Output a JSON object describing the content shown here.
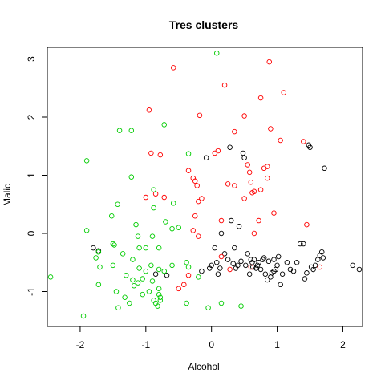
{
  "chart_data": {
    "type": "scatter",
    "title": "Tres clusters",
    "xlabel": "Alcohol",
    "ylabel": "Malic",
    "xlim": [
      -2.5,
      2.3
    ],
    "ylim": [
      -1.6,
      3.2
    ],
    "xticks": [
      "-2",
      "-1",
      "0",
      "1",
      "2"
    ],
    "yticks": [
      "-1",
      "0",
      "1",
      "2",
      "3"
    ],
    "grid": false,
    "legend": "none",
    "series": [
      {
        "color": "#000000",
        "points": [
          [
            -1.8,
            -0.25
          ],
          [
            -1.72,
            -0.3
          ],
          [
            -0.85,
            -0.7
          ],
          [
            -0.68,
            -0.72
          ],
          [
            -0.15,
            -0.65
          ],
          [
            -0.08,
            1.3
          ],
          [
            -0.03,
            -0.6
          ],
          [
            0.0,
            -0.55
          ],
          [
            0.05,
            -0.25
          ],
          [
            0.08,
            -0.5
          ],
          [
            0.1,
            -0.7
          ],
          [
            0.13,
            -0.6
          ],
          [
            0.15,
            0.0
          ],
          [
            0.2,
            -0.35
          ],
          [
            0.25,
            -0.45
          ],
          [
            0.28,
            1.48
          ],
          [
            0.3,
            0.22
          ],
          [
            0.35,
            -0.25
          ],
          [
            0.37,
            -0.6
          ],
          [
            0.4,
            -0.55
          ],
          [
            0.42,
            0.12
          ],
          [
            0.45,
            -0.48
          ],
          [
            0.48,
            1.38
          ],
          [
            0.5,
            1.3
          ],
          [
            0.52,
            -0.55
          ],
          [
            0.55,
            -0.35
          ],
          [
            0.6,
            -0.45
          ],
          [
            0.62,
            -0.5
          ],
          [
            0.63,
            -0.58
          ],
          [
            0.65,
            -0.45
          ],
          [
            0.68,
            -0.6
          ],
          [
            0.7,
            -0.55
          ],
          [
            0.72,
            -0.5
          ],
          [
            0.75,
            -0.62
          ],
          [
            0.78,
            -0.45
          ],
          [
            0.8,
            -0.42
          ],
          [
            0.82,
            -0.7
          ],
          [
            0.85,
            -0.8
          ],
          [
            0.87,
            -0.48
          ],
          [
            0.9,
            -0.75
          ],
          [
            0.92,
            -0.68
          ],
          [
            0.95,
            -0.45
          ],
          [
            0.98,
            -0.62
          ],
          [
            1.0,
            -0.55
          ],
          [
            1.02,
            -0.4
          ],
          [
            1.05,
            -0.88
          ],
          [
            1.08,
            -0.7
          ],
          [
            1.15,
            -0.5
          ],
          [
            1.2,
            -0.62
          ],
          [
            1.25,
            -0.65
          ],
          [
            1.3,
            -0.5
          ],
          [
            1.35,
            -0.18
          ],
          [
            1.4,
            -0.18
          ],
          [
            1.42,
            -0.78
          ],
          [
            1.45,
            -0.68
          ],
          [
            1.48,
            1.52
          ],
          [
            1.5,
            1.48
          ],
          [
            1.55,
            -0.62
          ],
          [
            1.58,
            -0.55
          ],
          [
            1.62,
            -0.45
          ],
          [
            1.65,
            -0.38
          ],
          [
            1.68,
            -0.32
          ],
          [
            1.7,
            -0.42
          ],
          [
            1.72,
            1.12
          ],
          [
            2.15,
            -0.55
          ],
          [
            2.25,
            -0.62
          ],
          [
            1.52,
            -0.58
          ],
          [
            0.95,
            -0.65
          ],
          [
            0.33,
            -0.52
          ],
          [
            0.58,
            -0.7
          ]
        ]
      },
      {
        "color": "#ff0000",
        "points": [
          [
            -0.58,
            2.85
          ],
          [
            -0.95,
            2.12
          ],
          [
            -0.92,
            1.38
          ],
          [
            -0.78,
            1.35
          ],
          [
            -0.18,
            2.03
          ],
          [
            0.05,
            1.38
          ],
          [
            0.1,
            1.42
          ],
          [
            0.2,
            2.55
          ],
          [
            0.35,
            1.75
          ],
          [
            0.5,
            2.02
          ],
          [
            0.55,
            1.18
          ],
          [
            0.58,
            1.05
          ],
          [
            0.6,
            0.88
          ],
          [
            0.62,
            0.7
          ],
          [
            0.65,
            0.72
          ],
          [
            0.75,
            2.33
          ],
          [
            0.8,
            1.12
          ],
          [
            0.85,
            1.15
          ],
          [
            0.88,
            2.95
          ],
          [
            0.9,
            1.8
          ],
          [
            0.95,
            0.35
          ],
          [
            1.05,
            1.6
          ],
          [
            1.1,
            2.42
          ],
          [
            1.4,
            1.58
          ],
          [
            1.45,
            0.15
          ],
          [
            1.65,
            -0.58
          ],
          [
            -1.0,
            0.62
          ],
          [
            -0.85,
            0.68
          ],
          [
            -0.72,
            0.62
          ],
          [
            -0.35,
            1.08
          ],
          [
            -0.28,
            0.95
          ],
          [
            -0.25,
            0.9
          ],
          [
            -0.22,
            0.82
          ],
          [
            -0.2,
            0.55
          ],
          [
            -0.15,
            0.6
          ],
          [
            -0.25,
            0.3
          ],
          [
            -0.28,
            0.05
          ],
          [
            -0.2,
            -0.05
          ],
          [
            0.15,
            0.22
          ],
          [
            0.25,
            0.85
          ],
          [
            0.35,
            0.82
          ],
          [
            0.5,
            0.6
          ],
          [
            0.65,
            0.0
          ],
          [
            0.72,
            0.22
          ],
          [
            0.75,
            0.75
          ],
          [
            0.85,
            0.95
          ],
          [
            -0.42,
            -0.88
          ],
          [
            -0.5,
            -0.95
          ],
          [
            -0.35,
            -0.72
          ],
          [
            0.15,
            -0.4
          ],
          [
            0.6,
            -0.58
          ],
          [
            0.28,
            -0.62
          ]
        ]
      },
      {
        "color": "#00cc00",
        "points": [
          [
            0.08,
            3.1
          ],
          [
            -0.72,
            1.87
          ],
          [
            -1.4,
            1.77
          ],
          [
            -1.22,
            1.77
          ],
          [
            -1.9,
            1.25
          ],
          [
            -1.22,
            0.97
          ],
          [
            -0.88,
            0.75
          ],
          [
            -0.35,
            1.37
          ],
          [
            -1.43,
            0.5
          ],
          [
            -1.52,
            0.3
          ],
          [
            -1.9,
            0.05
          ],
          [
            -0.88,
            0.44
          ],
          [
            -0.58,
            0.52
          ],
          [
            -0.7,
            0.2
          ],
          [
            -0.5,
            0.1
          ],
          [
            -0.6,
            0.08
          ],
          [
            -1.15,
            0.15
          ],
          [
            -1.12,
            -0.05
          ],
          [
            -0.9,
            -0.05
          ],
          [
            -1.5,
            -0.18
          ],
          [
            -1.48,
            -0.2
          ],
          [
            -1.1,
            -0.25
          ],
          [
            -1.0,
            -0.25
          ],
          [
            -0.8,
            -0.25
          ],
          [
            -1.35,
            -0.35
          ],
          [
            -1.72,
            -0.32
          ],
          [
            -1.76,
            -0.42
          ],
          [
            -1.7,
            -0.58
          ],
          [
            -1.5,
            -0.55
          ],
          [
            -1.2,
            -0.45
          ],
          [
            -1.1,
            -0.6
          ],
          [
            -0.92,
            -0.55
          ],
          [
            -0.8,
            -0.62
          ],
          [
            -0.72,
            -0.65
          ],
          [
            -0.6,
            -0.55
          ],
          [
            -0.38,
            -0.5
          ],
          [
            -0.35,
            -0.58
          ],
          [
            -0.2,
            -0.75
          ],
          [
            -1.3,
            -0.72
          ],
          [
            -1.2,
            -0.8
          ],
          [
            -1.12,
            -0.85
          ],
          [
            -1.05,
            -0.78
          ],
          [
            -0.9,
            -0.82
          ],
          [
            -0.8,
            -1.05
          ],
          [
            -0.78,
            -1.15
          ],
          [
            -0.8,
            -0.95
          ],
          [
            -0.95,
            -1.0
          ],
          [
            -1.05,
            -1.05
          ],
          [
            -1.32,
            -1.1
          ],
          [
            -1.45,
            -1.0
          ],
          [
            -1.72,
            -0.88
          ],
          [
            -2.45,
            -0.75
          ],
          [
            -1.95,
            -1.42
          ],
          [
            -1.42,
            -1.28
          ],
          [
            -1.25,
            -1.2
          ],
          [
            -0.88,
            -1.15
          ],
          [
            -0.82,
            -1.25
          ],
          [
            -0.38,
            -1.2
          ],
          [
            -0.05,
            -1.28
          ],
          [
            0.15,
            -1.2
          ],
          [
            0.45,
            -1.25
          ],
          [
            -0.85,
            -1.2
          ],
          [
            -0.78,
            -1.1
          ],
          [
            -1.18,
            -0.9
          ],
          [
            -1.0,
            -0.65
          ]
        ]
      }
    ]
  }
}
